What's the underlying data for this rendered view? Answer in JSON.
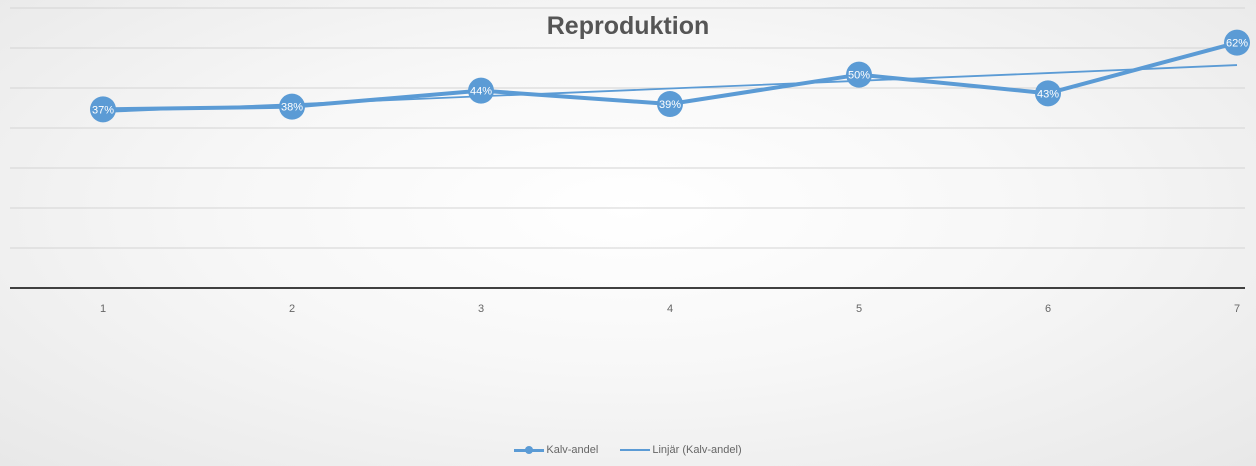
{
  "chart_data": {
    "type": "line",
    "title": "Reproduktion",
    "xlabel": "",
    "ylabel": "",
    "categories": [
      "1",
      "2",
      "3",
      "4",
      "5",
      "6",
      "7"
    ],
    "series": [
      {
        "name": "Kalv-andel",
        "values": [
          37,
          38,
          44,
          39,
          50,
          43,
          62
        ]
      },
      {
        "name": "Linjär (Kalv-andel)",
        "values": [
          36,
          38.9,
          41.9,
          44.8,
          47.7,
          50.6,
          53.6
        ]
      }
    ],
    "data_labels": [
      "37%",
      "38%",
      "44%",
      "39%",
      "50%",
      "43%",
      "62%"
    ],
    "ylim": [
      -30,
      75
    ],
    "grid": "horizontal",
    "legend": "bottom",
    "colors": {
      "series": "#5b9bd5",
      "grid": "#d4d4d4",
      "axis": "#404040"
    }
  }
}
